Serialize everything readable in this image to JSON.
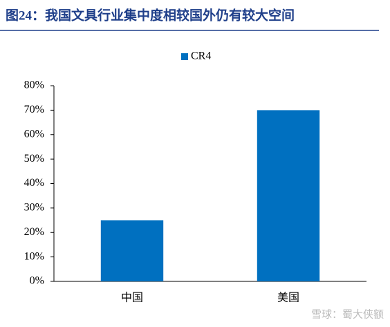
{
  "chart_data": {
    "type": "bar",
    "title": "图24：我国文具行业集中度相较国外仍有较大空间",
    "categories": [
      "中国",
      "美国"
    ],
    "series": [
      {
        "name": "CR4",
        "color": "#0070c0",
        "values": [
          25,
          70
        ]
      }
    ],
    "ylim": [
      0,
      80
    ],
    "yticks": [
      {
        "value": 0,
        "label": "0%"
      },
      {
        "value": 10,
        "label": "10%"
      },
      {
        "value": 20,
        "label": "20%"
      },
      {
        "value": 30,
        "label": "30%"
      },
      {
        "value": 40,
        "label": "40%"
      },
      {
        "value": 50,
        "label": "50%"
      },
      {
        "value": 60,
        "label": "60%"
      },
      {
        "value": 70,
        "label": "70%"
      },
      {
        "value": 80,
        "label": "80%"
      }
    ],
    "grid": false,
    "legend": "top",
    "watermark": "雪球：蜀大侠额"
  }
}
